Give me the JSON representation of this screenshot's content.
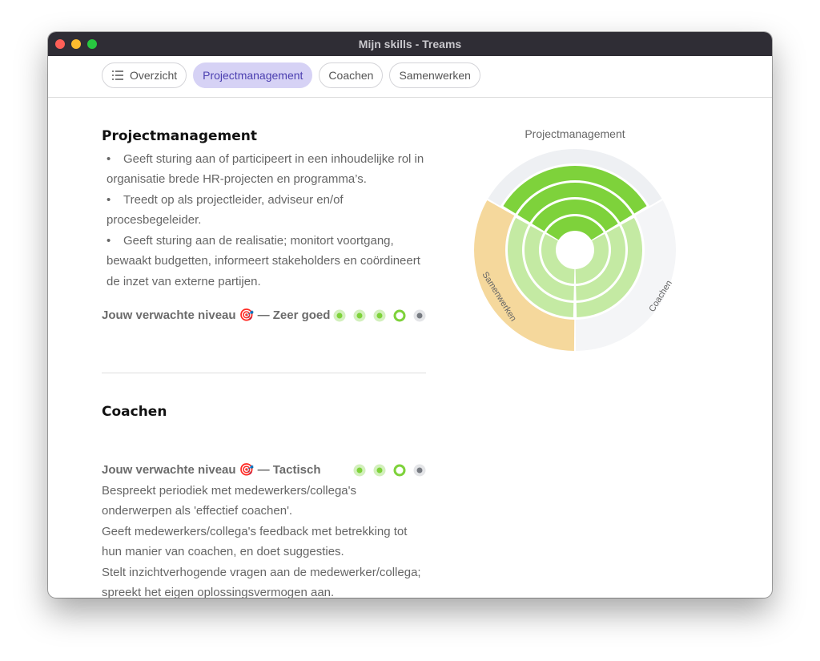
{
  "window": {
    "title": "Mijn skills - Treams"
  },
  "tabs": [
    "Overzicht",
    "Projectmanagement",
    "Coachen",
    "Samenwerken"
  ],
  "active_tab": 1,
  "sections": [
    {
      "title": "Projectmanagement",
      "bullets": [
        "Geeft sturing aan of participeert in een inhoudelijke rol in organisatie brede HR-projecten en programma’s.",
        "Treedt op als projectleider, adviseur en/of procesbegeleider.",
        "Geeft sturing aan de realisatie; monitort voortgang, bewaakt budgetten, informeert stakeholders en coördineert de inzet van externe partijen."
      ],
      "level_label": "Jouw verwachte niveau 🎯 — Zeer goed",
      "levels": 5,
      "expected_level": 4
    },
    {
      "title": "Coachen",
      "level_label": "Jouw verwachte niveau 🎯 — Tactisch",
      "levels": 4,
      "expected_level": 3,
      "paragraphs": [
        "Bespreekt periodiek met medewerkers/collega's onderwerpen als 'effectief coachen'.",
        "Geeft medewerkers/collega's feedback met betrekking tot hun manier van coachen, en doet suggesties.",
        "Stelt inzichtverhogende vragen aan de medewerker/collega; spreekt het eigen oplossingsvermogen aan."
      ]
    }
  ],
  "skill_chart": {
    "type": "radial",
    "max": 5,
    "segments": [
      {
        "name": "Projectmanagement",
        "value": 4,
        "color": "#7ed23b",
        "track_color": "#eef0f3"
      },
      {
        "name": "Coachen",
        "value": 3,
        "color": "#c4eaa3",
        "track_color": "#f4f5f7"
      },
      {
        "name": "Samenwerken",
        "value": 3,
        "color": "#c4eaa3",
        "track_color": "#f5d89c"
      }
    ]
  }
}
